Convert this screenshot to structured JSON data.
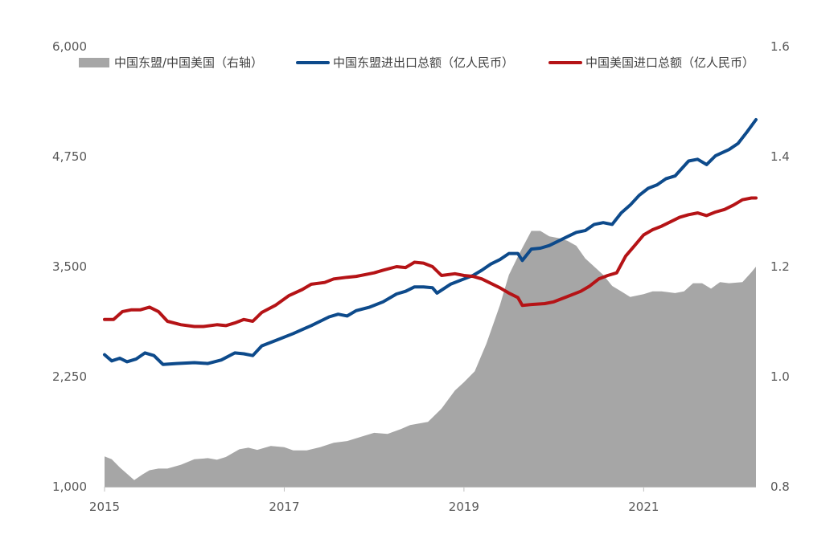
{
  "chart_data": {
    "type": "line",
    "title": "",
    "xlabel": "",
    "ylabel_left": "",
    "ylabel_right": "",
    "x_range": [
      2015.0,
      2022.25
    ],
    "x_ticks": [
      2015,
      2017,
      2019,
      2021
    ],
    "x_tick_labels": [
      "2015",
      "2017",
      "2019",
      "2021"
    ],
    "ylim_left": [
      1000,
      6000
    ],
    "y_left_ticks": [
      1000,
      2250,
      3500,
      4750,
      6000
    ],
    "y_left_tick_labels": [
      "1,000",
      "2,250",
      "3,500",
      "4,750",
      "6,000"
    ],
    "ylim_right": [
      0.8,
      1.6
    ],
    "y_right_ticks": [
      0.8,
      1.0,
      1.2,
      1.4,
      1.6
    ],
    "y_right_tick_labels": [
      "0.8",
      "1.0",
      "1.2",
      "1.4",
      "1.6"
    ],
    "grid": false,
    "legend_position": "top",
    "series": [
      {
        "name": "中国东盟/中国美国（右轴）",
        "kind": "area",
        "axis": "right",
        "color": "#a6a6a6",
        "points": [
          [
            2015.0,
            0.855
          ],
          [
            2015.08,
            0.85
          ],
          [
            2015.17,
            0.835
          ],
          [
            2015.33,
            0.812
          ],
          [
            2015.42,
            0.822
          ],
          [
            2015.5,
            0.83
          ],
          [
            2015.6,
            0.833
          ],
          [
            2015.7,
            0.833
          ],
          [
            2015.85,
            0.84
          ],
          [
            2016.0,
            0.85
          ],
          [
            2016.15,
            0.852
          ],
          [
            2016.25,
            0.849
          ],
          [
            2016.35,
            0.854
          ],
          [
            2016.5,
            0.868
          ],
          [
            2016.6,
            0.871
          ],
          [
            2016.7,
            0.867
          ],
          [
            2016.85,
            0.874
          ],
          [
            2017.0,
            0.872
          ],
          [
            2017.1,
            0.866
          ],
          [
            2017.25,
            0.866
          ],
          [
            2017.4,
            0.872
          ],
          [
            2017.55,
            0.88
          ],
          [
            2017.7,
            0.883
          ],
          [
            2017.9,
            0.893
          ],
          [
            2018.0,
            0.898
          ],
          [
            2018.15,
            0.896
          ],
          [
            2018.3,
            0.905
          ],
          [
            2018.4,
            0.912
          ],
          [
            2018.6,
            0.918
          ],
          [
            2018.75,
            0.942
          ],
          [
            2018.9,
            0.975
          ],
          [
            2019.0,
            0.99
          ],
          [
            2019.12,
            1.01
          ],
          [
            2019.25,
            1.06
          ],
          [
            2019.4,
            1.13
          ],
          [
            2019.5,
            1.185
          ],
          [
            2019.62,
            1.225
          ],
          [
            2019.75,
            1.265
          ],
          [
            2019.85,
            1.265
          ],
          [
            2019.95,
            1.255
          ],
          [
            2020.05,
            1.252
          ],
          [
            2020.15,
            1.247
          ],
          [
            2020.25,
            1.238
          ],
          [
            2020.35,
            1.215
          ],
          [
            2020.45,
            1.2
          ],
          [
            2020.55,
            1.185
          ],
          [
            2020.65,
            1.165
          ],
          [
            2020.75,
            1.155
          ],
          [
            2020.85,
            1.145
          ],
          [
            2021.0,
            1.15
          ],
          [
            2021.1,
            1.155
          ],
          [
            2021.2,
            1.155
          ],
          [
            2021.35,
            1.152
          ],
          [
            2021.45,
            1.155
          ],
          [
            2021.55,
            1.17
          ],
          [
            2021.65,
            1.17
          ],
          [
            2021.75,
            1.16
          ],
          [
            2021.85,
            1.172
          ],
          [
            2021.95,
            1.17
          ],
          [
            2022.1,
            1.172
          ],
          [
            2022.2,
            1.19
          ],
          [
            2022.25,
            1.2
          ]
        ]
      },
      {
        "name": "中国东盟进出口总额（亿人民币）",
        "kind": "line",
        "axis": "left",
        "color": "#0d4a8b",
        "points": [
          [
            2015.0,
            2500
          ],
          [
            2015.08,
            2430
          ],
          [
            2015.17,
            2460
          ],
          [
            2015.25,
            2420
          ],
          [
            2015.35,
            2450
          ],
          [
            2015.45,
            2520
          ],
          [
            2015.55,
            2490
          ],
          [
            2015.65,
            2390
          ],
          [
            2015.8,
            2400
          ],
          [
            2016.0,
            2410
          ],
          [
            2016.15,
            2400
          ],
          [
            2016.3,
            2440
          ],
          [
            2016.45,
            2520
          ],
          [
            2016.55,
            2510
          ],
          [
            2016.65,
            2490
          ],
          [
            2016.75,
            2600
          ],
          [
            2016.9,
            2660
          ],
          [
            2017.1,
            2740
          ],
          [
            2017.3,
            2830
          ],
          [
            2017.5,
            2930
          ],
          [
            2017.6,
            2960
          ],
          [
            2017.7,
            2940
          ],
          [
            2017.8,
            3000
          ],
          [
            2017.95,
            3040
          ],
          [
            2018.1,
            3100
          ],
          [
            2018.25,
            3190
          ],
          [
            2018.35,
            3220
          ],
          [
            2018.45,
            3270
          ],
          [
            2018.55,
            3270
          ],
          [
            2018.65,
            3260
          ],
          [
            2018.7,
            3200
          ],
          [
            2018.85,
            3300
          ],
          [
            2019.0,
            3360
          ],
          [
            2019.1,
            3400
          ],
          [
            2019.2,
            3460
          ],
          [
            2019.3,
            3530
          ],
          [
            2019.4,
            3580
          ],
          [
            2019.5,
            3650
          ],
          [
            2019.6,
            3650
          ],
          [
            2019.65,
            3570
          ],
          [
            2019.75,
            3700
          ],
          [
            2019.85,
            3710
          ],
          [
            2019.95,
            3740
          ],
          [
            2020.05,
            3790
          ],
          [
            2020.15,
            3840
          ],
          [
            2020.25,
            3890
          ],
          [
            2020.35,
            3910
          ],
          [
            2020.45,
            3980
          ],
          [
            2020.55,
            4000
          ],
          [
            2020.65,
            3980
          ],
          [
            2020.75,
            4110
          ],
          [
            2020.85,
            4200
          ],
          [
            2020.95,
            4310
          ],
          [
            2021.05,
            4390
          ],
          [
            2021.15,
            4430
          ],
          [
            2021.25,
            4500
          ],
          [
            2021.35,
            4530
          ],
          [
            2021.5,
            4700
          ],
          [
            2021.6,
            4720
          ],
          [
            2021.7,
            4660
          ],
          [
            2021.8,
            4760
          ],
          [
            2021.95,
            4830
          ],
          [
            2022.05,
            4900
          ],
          [
            2022.15,
            5030
          ],
          [
            2022.25,
            5170
          ]
        ]
      },
      {
        "name": "中国美国进口总额（亿人民币）",
        "kind": "line",
        "axis": "left",
        "color": "#b51316",
        "points": [
          [
            2015.0,
            2900
          ],
          [
            2015.1,
            2900
          ],
          [
            2015.2,
            2990
          ],
          [
            2015.3,
            3010
          ],
          [
            2015.4,
            3010
          ],
          [
            2015.5,
            3040
          ],
          [
            2015.6,
            2990
          ],
          [
            2015.7,
            2880
          ],
          [
            2015.85,
            2840
          ],
          [
            2016.0,
            2820
          ],
          [
            2016.1,
            2820
          ],
          [
            2016.25,
            2840
          ],
          [
            2016.35,
            2830
          ],
          [
            2016.45,
            2860
          ],
          [
            2016.55,
            2900
          ],
          [
            2016.65,
            2880
          ],
          [
            2016.75,
            2980
          ],
          [
            2016.9,
            3060
          ],
          [
            2017.05,
            3170
          ],
          [
            2017.2,
            3240
          ],
          [
            2017.3,
            3300
          ],
          [
            2017.45,
            3320
          ],
          [
            2017.55,
            3360
          ],
          [
            2017.7,
            3380
          ],
          [
            2017.8,
            3390
          ],
          [
            2017.9,
            3410
          ],
          [
            2018.0,
            3430
          ],
          [
            2018.1,
            3460
          ],
          [
            2018.25,
            3500
          ],
          [
            2018.35,
            3490
          ],
          [
            2018.45,
            3550
          ],
          [
            2018.55,
            3540
          ],
          [
            2018.65,
            3500
          ],
          [
            2018.75,
            3400
          ],
          [
            2018.9,
            3420
          ],
          [
            2019.0,
            3400
          ],
          [
            2019.1,
            3390
          ],
          [
            2019.2,
            3360
          ],
          [
            2019.3,
            3310
          ],
          [
            2019.4,
            3260
          ],
          [
            2019.5,
            3200
          ],
          [
            2019.6,
            3150
          ],
          [
            2019.65,
            3060
          ],
          [
            2019.75,
            3070
          ],
          [
            2019.9,
            3080
          ],
          [
            2020.0,
            3100
          ],
          [
            2020.15,
            3160
          ],
          [
            2020.3,
            3220
          ],
          [
            2020.4,
            3280
          ],
          [
            2020.5,
            3360
          ],
          [
            2020.6,
            3400
          ],
          [
            2020.7,
            3430
          ],
          [
            2020.8,
            3620
          ],
          [
            2020.9,
            3740
          ],
          [
            2021.0,
            3860
          ],
          [
            2021.1,
            3920
          ],
          [
            2021.2,
            3960
          ],
          [
            2021.3,
            4010
          ],
          [
            2021.4,
            4060
          ],
          [
            2021.5,
            4090
          ],
          [
            2021.6,
            4110
          ],
          [
            2021.7,
            4080
          ],
          [
            2021.8,
            4120
          ],
          [
            2021.9,
            4150
          ],
          [
            2022.0,
            4200
          ],
          [
            2022.1,
            4260
          ],
          [
            2022.2,
            4280
          ],
          [
            2022.25,
            4280
          ]
        ]
      }
    ]
  }
}
